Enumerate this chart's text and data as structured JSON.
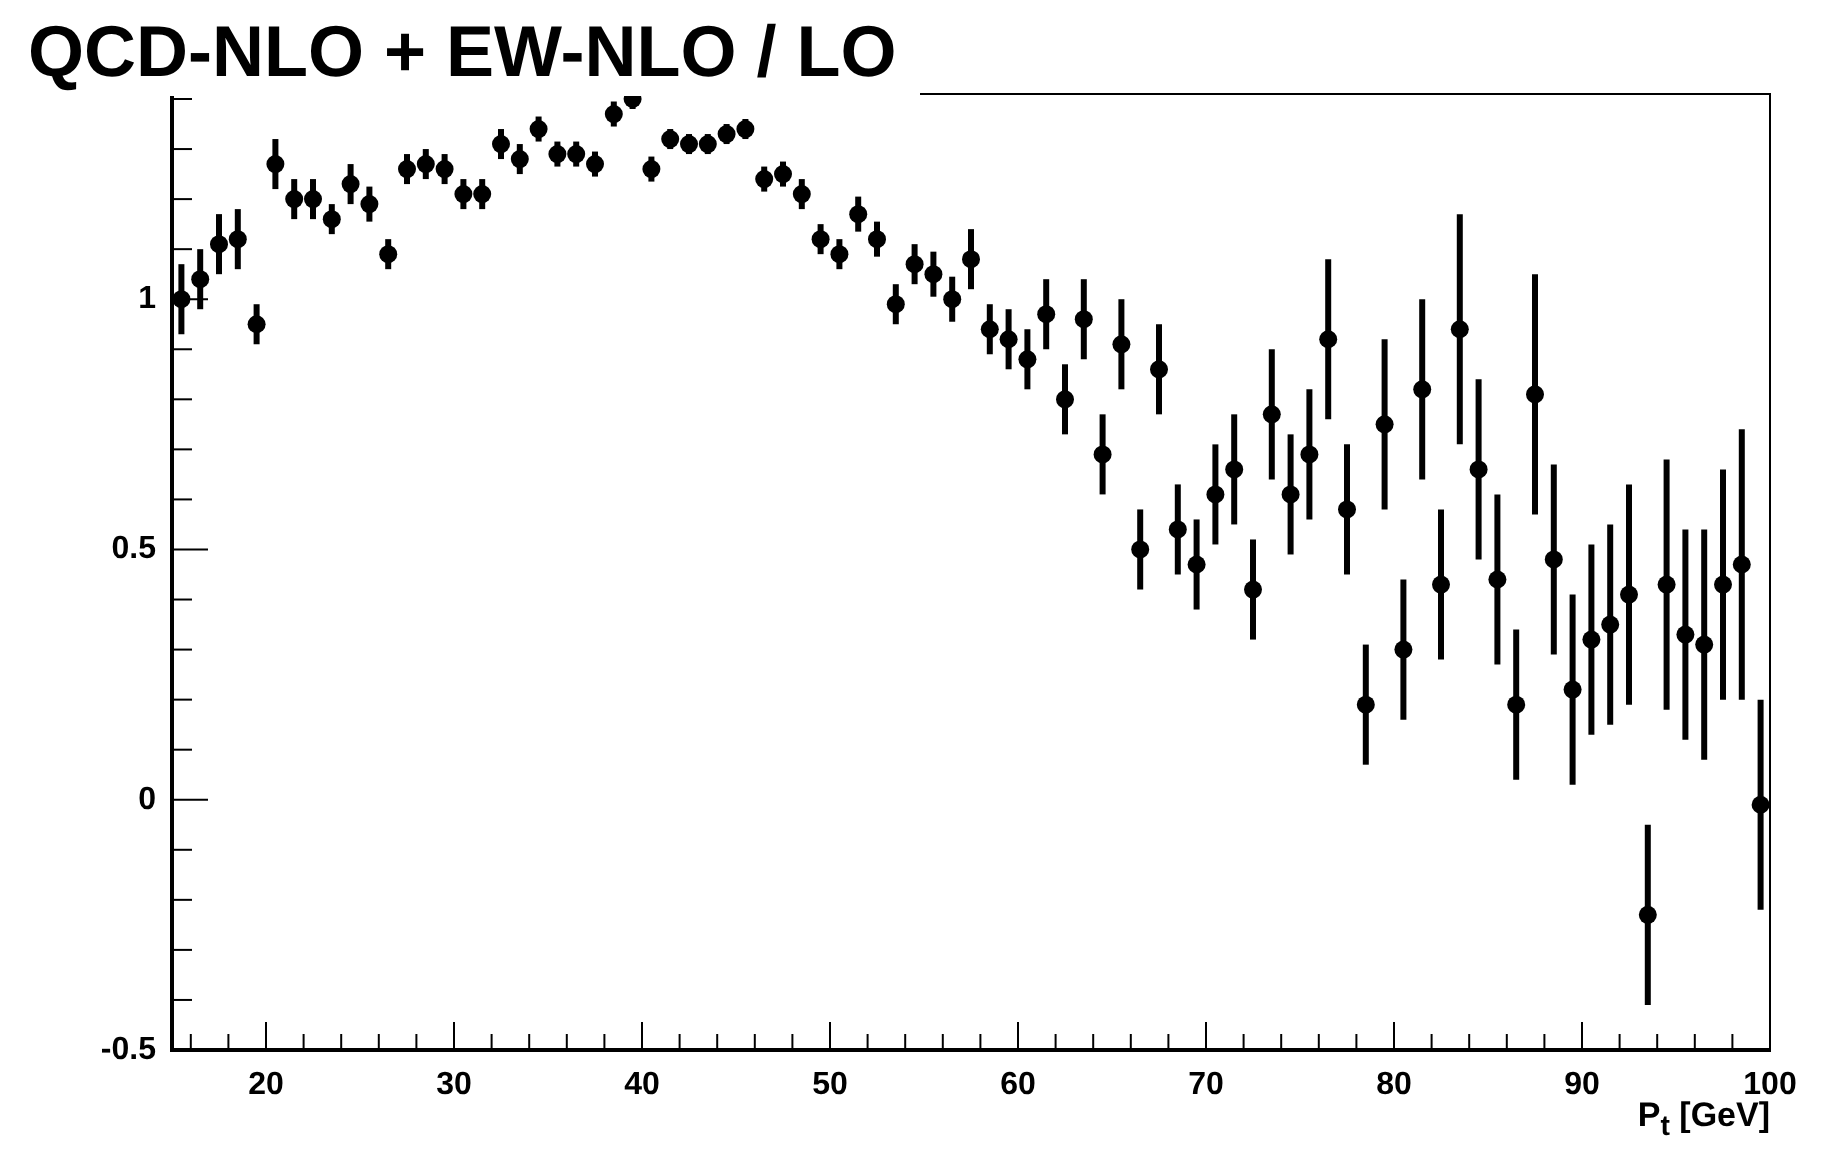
{
  "chart_data": {
    "type": "scatter",
    "title": "QCD-NLO + EW-NLO / LO",
    "xlabel": "P$_{t}$ [GeV]",
    "marker": "circle",
    "grid": false,
    "legend": false,
    "xlim": [
      15,
      100
    ],
    "ylim": [
      -0.5,
      1.41
    ],
    "xticks": [
      {
        "value": 16,
        "label": null
      },
      {
        "value": 18,
        "label": null
      },
      20,
      {
        "value": 22,
        "label": null
      },
      {
        "value": 24,
        "label": null
      },
      {
        "value": 26,
        "label": null
      },
      {
        "value": 28,
        "label": null
      },
      30,
      {
        "value": 32,
        "label": null
      },
      {
        "value": 34,
        "label": null
      },
      {
        "value": 36,
        "label": null
      },
      {
        "value": 38,
        "label": null
      },
      40,
      {
        "value": 42,
        "label": null
      },
      {
        "value": 44,
        "label": null
      },
      {
        "value": 46,
        "label": null
      },
      {
        "value": 48,
        "label": null
      },
      50,
      {
        "value": 52,
        "label": null
      },
      {
        "value": 54,
        "label": null
      },
      {
        "value": 56,
        "label": null
      },
      {
        "value": 58,
        "label": null
      },
      60,
      {
        "value": 62,
        "label": null
      },
      {
        "value": 64,
        "label": null
      },
      {
        "value": 66,
        "label": null
      },
      {
        "value": 68,
        "label": null
      },
      70,
      {
        "value": 72,
        "label": null
      },
      {
        "value": 74,
        "label": null
      },
      {
        "value": 76,
        "label": null
      },
      {
        "value": 78,
        "label": null
      },
      80,
      {
        "value": 82,
        "label": null
      },
      {
        "value": 84,
        "label": null
      },
      {
        "value": 86,
        "label": null
      },
      {
        "value": 88,
        "label": null
      },
      90,
      {
        "value": 92,
        "label": null
      },
      {
        "value": 94,
        "label": null
      },
      {
        "value": 96,
        "label": null
      },
      {
        "value": 98,
        "label": null
      },
      100
    ],
    "yticks": [
      -0.5,
      {
        "value": -0.4,
        "label": null
      },
      {
        "value": -0.3,
        "label": null
      },
      {
        "value": -0.2,
        "label": null
      },
      {
        "value": -0.1,
        "label": null
      },
      0,
      {
        "value": 0.1,
        "label": null
      },
      {
        "value": 0.2,
        "label": null
      },
      {
        "value": 0.3,
        "label": null
      },
      {
        "value": 0.4,
        "label": null
      },
      0.5,
      {
        "value": 0.6,
        "label": null
      },
      {
        "value": 0.7,
        "label": null
      },
      {
        "value": 0.8,
        "label": null
      },
      {
        "value": 0.9,
        "label": null
      },
      1,
      {
        "value": 1.1,
        "label": null
      },
      {
        "value": 1.2,
        "label": null
      },
      {
        "value": 1.3,
        "label": null
      },
      {
        "value": 1.4,
        "label": null
      }
    ],
    "series": [
      {
        "color": "#000000",
        "x": [
          15.5,
          16.5,
          17.5,
          18.5,
          19.5,
          20.5,
          21.5,
          22.5,
          23.5,
          24.5,
          25.5,
          26.5,
          27.5,
          28.5,
          29.5,
          30.5,
          31.5,
          32.5,
          33.5,
          34.5,
          35.5,
          36.5,
          37.5,
          38.5,
          39.5,
          40.5,
          41.5,
          42.5,
          43.5,
          44.5,
          45.5,
          46.5,
          47.5,
          48.5,
          49.5,
          50.5,
          51.5,
          52.5,
          53.5,
          54.5,
          55.5,
          56.5,
          57.5,
          58.5,
          59.5,
          60.5,
          61.5,
          62.5,
          63.5,
          64.5,
          65.5,
          66.5,
          67.5,
          68.5,
          69.5,
          70.5,
          71.5,
          72.5,
          73.5,
          74.5,
          75.5,
          76.5,
          77.5,
          78.5,
          79.5,
          80.5,
          81.5,
          82.5,
          83.5,
          84.5,
          85.5,
          86.5,
          87.5,
          88.5,
          89.5,
          90.5,
          91.5,
          92.5,
          93.5,
          94.5,
          95.5,
          96.5,
          97.5,
          98.5,
          99.5
        ],
        "values": [
          1.0,
          1.04,
          1.11,
          1.12,
          0.95,
          1.27,
          1.2,
          1.2,
          1.16,
          1.23,
          1.19,
          1.09,
          1.26,
          1.27,
          1.26,
          1.21,
          1.21,
          1.31,
          1.28,
          1.34,
          1.29,
          1.29,
          1.27,
          1.37,
          1.4,
          1.26,
          1.32,
          1.31,
          1.31,
          1.33,
          1.34,
          1.24,
          1.25,
          1.21,
          1.12,
          1.09,
          1.17,
          1.12,
          0.99,
          1.07,
          1.05,
          1.0,
          1.08,
          0.94,
          0.92,
          0.88,
          0.97,
          0.8,
          0.96,
          0.69,
          0.91,
          0.5,
          0.86,
          0.54,
          0.47,
          0.61,
          0.66,
          0.42,
          0.77,
          0.61,
          0.69,
          0.92,
          0.58,
          0.19,
          0.75,
          0.3,
          0.82,
          0.43,
          0.94,
          0.66,
          0.44,
          0.19,
          0.81,
          0.48,
          0.22,
          0.32,
          0.35,
          0.41,
          -0.23,
          0.43,
          0.33,
          0.31,
          0.43,
          0.47,
          -0.01
        ],
        "errors": [
          0.07,
          0.06,
          0.06,
          0.06,
          0.04,
          0.05,
          0.04,
          0.04,
          0.03,
          0.04,
          0.035,
          0.03,
          0.03,
          0.03,
          0.03,
          0.03,
          0.03,
          0.03,
          0.03,
          0.025,
          0.025,
          0.025,
          0.025,
          0.025,
          0.02,
          0.025,
          0.02,
          0.02,
          0.02,
          0.02,
          0.02,
          0.025,
          0.025,
          0.03,
          0.03,
          0.03,
          0.035,
          0.035,
          0.04,
          0.04,
          0.045,
          0.045,
          0.06,
          0.05,
          0.06,
          0.06,
          0.07,
          0.07,
          0.08,
          0.08,
          0.09,
          0.08,
          0.09,
          0.09,
          0.09,
          0.1,
          0.11,
          0.1,
          0.13,
          0.12,
          0.13,
          0.16,
          0.13,
          0.12,
          0.17,
          0.14,
          0.18,
          0.15,
          0.23,
          0.18,
          0.17,
          0.15,
          0.24,
          0.19,
          0.19,
          0.19,
          0.2,
          0.22,
          0.18,
          0.25,
          0.21,
          0.23,
          0.23,
          0.27,
          0.21
        ]
      }
    ]
  }
}
